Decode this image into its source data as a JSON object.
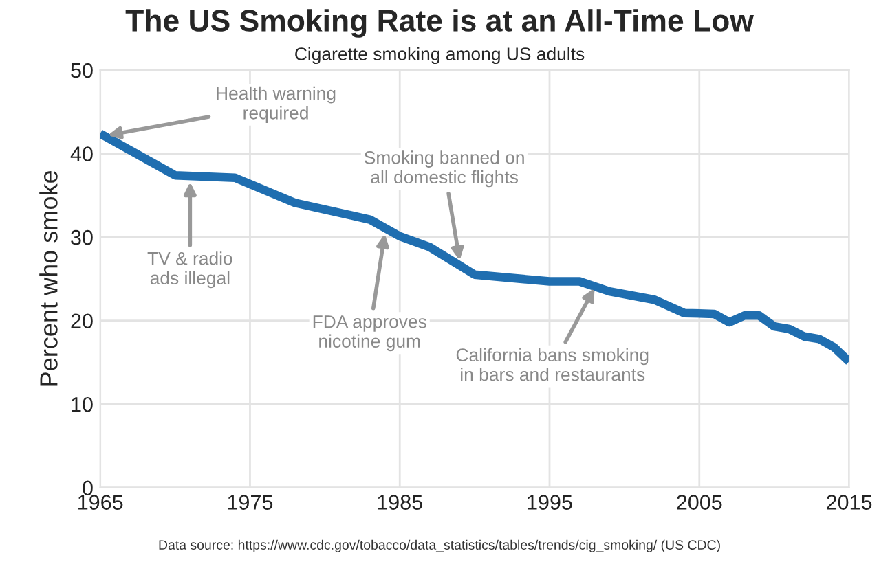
{
  "chart_data": {
    "type": "line",
    "title": "The US Smoking Rate is at an All-Time Low",
    "subtitle": "Cigarette smoking among US adults",
    "ylabel": "Percent who smoke",
    "x": [
      1965,
      1970,
      1974,
      1978,
      1983,
      1985,
      1987,
      1990,
      1995,
      1997,
      1999,
      2002,
      2004,
      2006,
      2007,
      2008,
      2009,
      2010,
      2011,
      2012,
      2013,
      2014,
      2015
    ],
    "series": [
      {
        "color": "#1f6eb0",
        "values": [
          42.4,
          37.4,
          37.1,
          34.1,
          32.1,
          30.1,
          28.8,
          25.5,
          24.7,
          24.7,
          23.5,
          22.5,
          20.9,
          20.8,
          19.8,
          20.6,
          20.6,
          19.3,
          19.0,
          18.1,
          17.8,
          16.8,
          15.1
        ]
      }
    ],
    "xlim": [
      1965,
      2015
    ],
    "xticks": [
      1965,
      1975,
      1985,
      1995,
      2005,
      2015
    ],
    "ylim": [
      0,
      50
    ],
    "yticks": [
      0,
      10,
      20,
      30,
      40,
      50
    ],
    "grid": true,
    "marker": "none",
    "line_style": "solid",
    "annotations": [
      {
        "text": "Health warning\nrequired",
        "x": 1965.5,
        "y": 42.2
      },
      {
        "text": "TV & radio\nads illegal",
        "x": 1971,
        "y": 36.6
      },
      {
        "text": "FDA approves\nnicotine gum",
        "x": 1984,
        "y": 30.4
      },
      {
        "text": "Smoking banned on\nall domestic flights",
        "x": 1989,
        "y": 27.2
      },
      {
        "text": "California bans smoking\nin bars and restaurants",
        "x": 1998,
        "y": 23.9
      },
      "Data source: https://www.cdc.gov/tobacco/data_statistics/tables/trends/cig_smoking/ (US CDC)"
    ]
  }
}
